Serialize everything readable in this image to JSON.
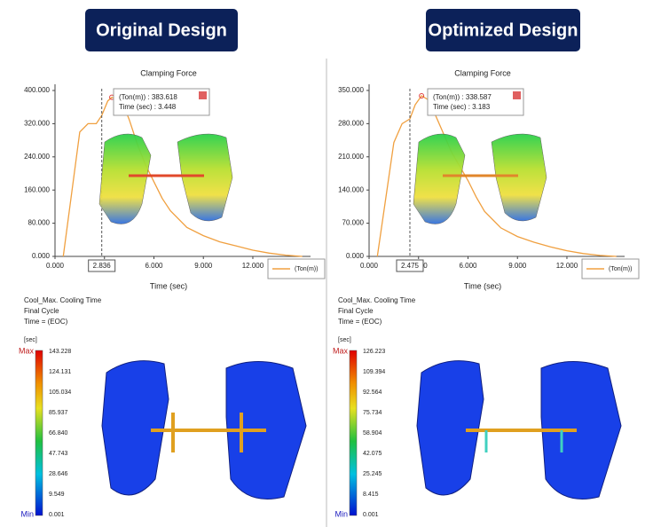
{
  "headers": [
    "Original Design",
    "Optimized Design"
  ],
  "chart_data": [
    {
      "type": "line",
      "title": "Clamping Force",
      "x_label": "Time (sec)",
      "x": [
        0.5,
        1.0,
        1.5,
        2.0,
        2.5,
        2.836,
        3.2,
        3.448,
        4.0,
        4.5,
        5.0,
        5.5,
        6.0,
        6.5,
        7.0,
        8.0,
        9.0,
        10.0,
        11.0,
        12.0,
        13.0,
        14.0,
        15.0
      ],
      "series": [
        {
          "name": "(Ton(m))",
          "color": "#f0a040",
          "values": [
            0,
            150,
            300,
            320,
            320,
            340,
            375,
            383.618,
            380,
            330,
            270,
            220,
            180,
            140,
            110,
            70,
            50,
            35,
            25,
            15,
            8,
            3,
            0
          ]
        }
      ],
      "xlim": [
        0,
        15.5
      ],
      "ylim": [
        0,
        415
      ],
      "xticks": [
        {
          "value": 0,
          "label": "0.000"
        },
        {
          "value": 3,
          "label": "3.000"
        },
        {
          "value": 6,
          "label": "6.000"
        },
        {
          "value": 9,
          "label": "9.000"
        },
        {
          "value": 12,
          "label": "12.000"
        }
      ],
      "yticks": [
        {
          "value": 0,
          "label": "0.000"
        },
        {
          "value": 80,
          "label": "80.000"
        },
        {
          "value": 160,
          "label": "160.000"
        },
        {
          "value": 240,
          "label": "240.000"
        },
        {
          "value": 320,
          "label": "320.000"
        },
        {
          "value": 400,
          "label": "400.000"
        }
      ],
      "cursor_x": 2.836,
      "tooltip": [
        "(Ton(m)) : 383.618",
        "Time (sec) : 3.448"
      ]
    },
    {
      "type": "line",
      "title": "Clamping Force",
      "x_label": "Time (sec)",
      "x": [
        0.5,
        1.0,
        1.5,
        2.0,
        2.475,
        2.8,
        3.183,
        3.6,
        4.0,
        4.5,
        5.0,
        5.5,
        6.0,
        6.5,
        7.0,
        8.0,
        9.0,
        10.0,
        11.0,
        12.0,
        13.0,
        14.0,
        15.0
      ],
      "series": [
        {
          "name": "(Ton(m))",
          "color": "#f0a040",
          "values": [
            0,
            120,
            240,
            280,
            290,
            320,
            338.587,
            330,
            300,
            260,
            220,
            190,
            160,
            125,
            95,
            60,
            42,
            30,
            20,
            12,
            6,
            2,
            0
          ]
        }
      ],
      "xlim": [
        0,
        15.5
      ],
      "ylim": [
        0,
        363
      ],
      "xticks": [
        {
          "value": 0,
          "label": "0.000"
        },
        {
          "value": 3,
          "label": "3.000"
        },
        {
          "value": 6,
          "label": "6.000"
        },
        {
          "value": 9,
          "label": "9.000"
        },
        {
          "value": 12,
          "label": "12.000"
        }
      ],
      "yticks": [
        {
          "value": 0,
          "label": "0.000"
        },
        {
          "value": 70,
          "label": "70.000"
        },
        {
          "value": 140,
          "label": "140.000"
        },
        {
          "value": 210,
          "label": "210.000"
        },
        {
          "value": 280,
          "label": "280.000"
        },
        {
          "value": 350,
          "label": "350.000"
        }
      ],
      "cursor_x": 2.475,
      "tooltip": [
        "(Ton(m)) : 338.587",
        "Time (sec) : 3.183"
      ]
    }
  ],
  "results": [
    {
      "lines": [
        "Cool_Max. Cooling Time",
        "Final Cycle",
        "Time = (EOC)"
      ],
      "unit": "[sec]",
      "max": "Max",
      "min": "Min",
      "scale": [
        "143.228",
        "124.131",
        "105.034",
        "85.937",
        "66.840",
        "47.743",
        "28.646",
        "9.549",
        "0.001"
      ]
    },
    {
      "lines": [
        "Cool_Max. Cooling Time",
        "Final Cycle",
        "Time = (EOC)"
      ],
      "unit": "[sec]",
      "max": "Max",
      "min": "Min",
      "scale": [
        "126.223",
        "109.394",
        "92.564",
        "75.734",
        "58.904",
        "42.075",
        "25.245",
        "8.415",
        "0.001"
      ]
    }
  ]
}
